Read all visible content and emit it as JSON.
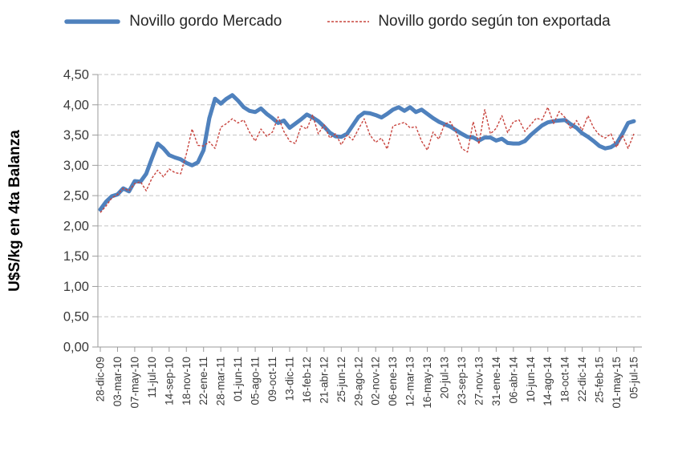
{
  "legend": {
    "items": [
      {
        "label": "Novillo gordo Mercado",
        "sample": "thick-solid-line"
      },
      {
        "label": "Novillo gordo según ton exportada",
        "sample": "thin-dotted-line"
      }
    ]
  },
  "chart_data": {
    "type": "line",
    "title": "",
    "xlabel": "",
    "ylabel": "U$S/kg en 4ta Balanza",
    "ylim": [
      0,
      4.5
    ],
    "ytick_step": 0.5,
    "ytick_labels": [
      "0,00",
      "0,50",
      "1,00",
      "1,50",
      "2,00",
      "2,50",
      "3,00",
      "3,50",
      "4,00",
      "4,50"
    ],
    "grid": "horizontal-dashed",
    "legend_position": "top",
    "points_per_label_interval": 3,
    "x_tick_labels": [
      "28-dic-09",
      "03-mar-10",
      "07-may-10",
      "11-jul-10",
      "14-sep-10",
      "18-nov-10",
      "22-ene-11",
      "28-mar-11",
      "01-jun-11",
      "05-ago-11",
      "09-oct-11",
      "13-dic-11",
      "16-feb-12",
      "21-abr-12",
      "25-jun-12",
      "29-ago-12",
      "02-nov-12",
      "06-ene-13",
      "12-mar-13",
      "16-may-13",
      "20-jul-13",
      "23-sep-13",
      "27-nov-13",
      "31-ene-14",
      "06-abr-14",
      "10-jun-14",
      "14-ago-14",
      "18-oct-14",
      "22-dic-14",
      "25-feb-15",
      "01-may-15",
      "05-jul-15"
    ],
    "series": [
      {
        "name": "Novillo gordo Mercado",
        "color": "#4F81BD",
        "style": "solid-thick",
        "values": [
          2.27,
          2.4,
          2.49,
          2.52,
          2.62,
          2.57,
          2.74,
          2.73,
          2.86,
          3.12,
          3.36,
          3.28,
          3.17,
          3.13,
          3.1,
          3.04,
          3.0,
          3.05,
          3.25,
          3.78,
          4.1,
          4.02,
          4.1,
          4.16,
          4.07,
          3.96,
          3.9,
          3.88,
          3.94,
          3.85,
          3.78,
          3.7,
          3.74,
          3.62,
          3.69,
          3.76,
          3.84,
          3.79,
          3.73,
          3.64,
          3.54,
          3.48,
          3.47,
          3.52,
          3.66,
          3.8,
          3.87,
          3.86,
          3.83,
          3.79,
          3.85,
          3.92,
          3.96,
          3.9,
          3.96,
          3.88,
          3.92,
          3.85,
          3.78,
          3.72,
          3.68,
          3.64,
          3.58,
          3.52,
          3.47,
          3.46,
          3.41,
          3.46,
          3.46,
          3.41,
          3.44,
          3.37,
          3.36,
          3.36,
          3.4,
          3.5,
          3.58,
          3.66,
          3.71,
          3.73,
          3.74,
          3.75,
          3.68,
          3.62,
          3.53,
          3.47,
          3.4,
          3.32,
          3.28,
          3.3,
          3.36,
          3.52,
          3.7,
          3.73
        ]
      },
      {
        "name": "Novillo gordo según ton exportada",
        "color": "#C8453F",
        "style": "dotted-thin",
        "values": [
          2.22,
          2.33,
          2.46,
          2.52,
          2.62,
          2.58,
          2.7,
          2.73,
          2.58,
          2.79,
          2.92,
          2.81,
          2.94,
          2.88,
          2.86,
          3.19,
          3.6,
          3.33,
          3.32,
          3.39,
          3.28,
          3.63,
          3.69,
          3.77,
          3.7,
          3.75,
          3.55,
          3.4,
          3.6,
          3.48,
          3.55,
          3.8,
          3.56,
          3.4,
          3.36,
          3.65,
          3.6,
          3.83,
          3.52,
          3.67,
          3.45,
          3.52,
          3.34,
          3.5,
          3.42,
          3.6,
          3.77,
          3.5,
          3.38,
          3.45,
          3.27,
          3.65,
          3.68,
          3.71,
          3.62,
          3.64,
          3.4,
          3.25,
          3.55,
          3.43,
          3.68,
          3.72,
          3.55,
          3.28,
          3.22,
          3.72,
          3.35,
          3.92,
          3.52,
          3.61,
          3.82,
          3.54,
          3.72,
          3.75,
          3.56,
          3.67,
          3.78,
          3.75,
          3.96,
          3.69,
          3.89,
          3.79,
          3.6,
          3.74,
          3.58,
          3.82,
          3.62,
          3.5,
          3.45,
          3.52,
          3.3,
          3.5,
          3.28,
          3.52
        ]
      }
    ]
  }
}
